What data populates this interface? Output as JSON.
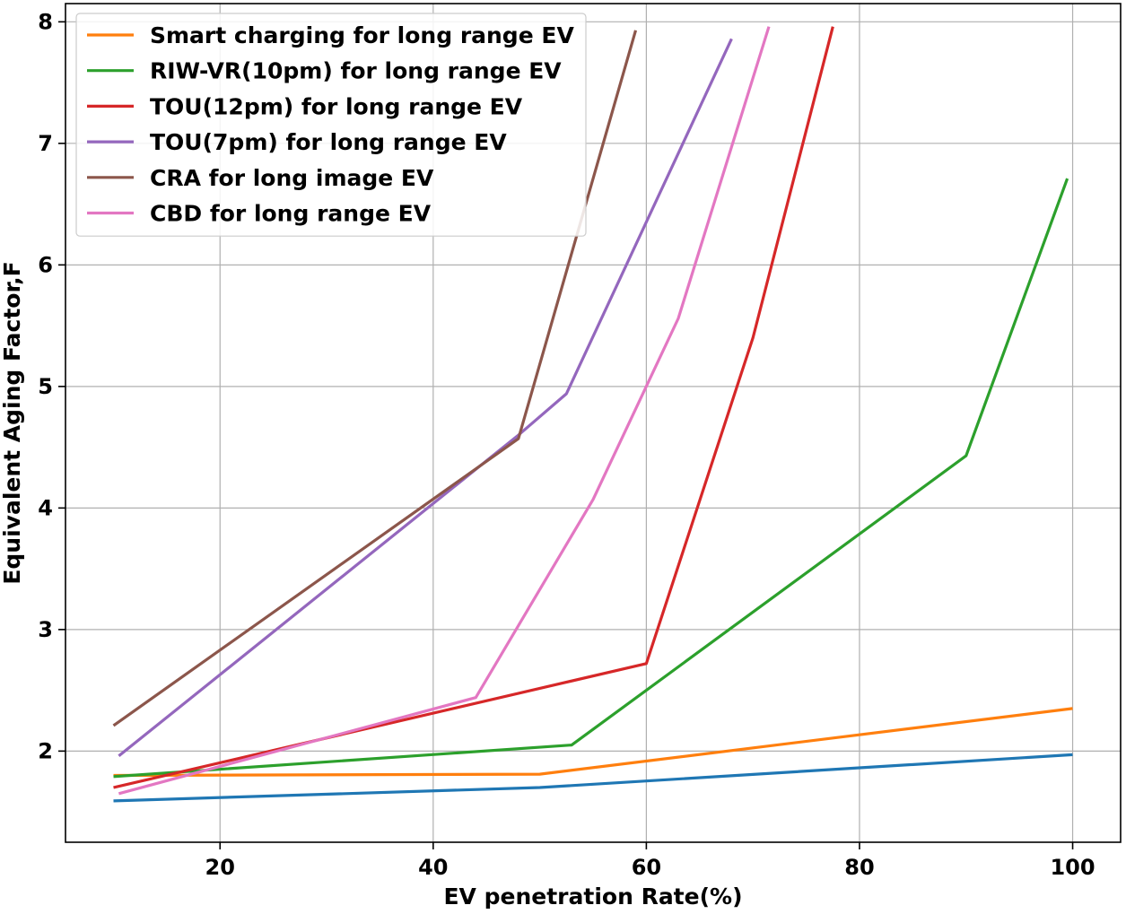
{
  "chart_data": {
    "type": "line",
    "title": "",
    "xlabel": "EV penetration Rate(%)",
    "ylabel": "Equivalent Aging Factor,F",
    "xlim": [
      5.5,
      104.5
    ],
    "ylim": [
      1.25,
      8.15
    ],
    "xticks": [
      20,
      40,
      60,
      80,
      100
    ],
    "yticks": [
      2,
      3,
      4,
      5,
      6,
      7,
      8
    ],
    "grid": true,
    "legend_position": "top-left",
    "series": [
      {
        "name": "",
        "color": "#1f77b4",
        "in_legend": false,
        "points": [
          [
            10,
            1.59
          ],
          [
            50,
            1.7
          ],
          [
            100,
            1.97
          ]
        ]
      },
      {
        "name": "Smart charging for long range EV",
        "color": "#ff7f0e",
        "in_legend": true,
        "points": [
          [
            10,
            1.8
          ],
          [
            50,
            1.81
          ],
          [
            100,
            2.35
          ]
        ]
      },
      {
        "name": "RIW-VR(10pm) for long range EV",
        "color": "#2ca02c",
        "in_legend": true,
        "points": [
          [
            10,
            1.79
          ],
          [
            53,
            2.05
          ],
          [
            90,
            4.43
          ],
          [
            99.5,
            6.71
          ]
        ]
      },
      {
        "name": "TOU(12pm) for long range EV",
        "color": "#d62728",
        "in_legend": true,
        "points": [
          [
            10,
            1.7
          ],
          [
            60,
            2.72
          ],
          [
            70,
            5.4
          ],
          [
            77.5,
            7.96
          ]
        ]
      },
      {
        "name": "TOU(7pm) for long range EV",
        "color": "#9467bd",
        "in_legend": true,
        "points": [
          [
            10.5,
            1.96
          ],
          [
            48,
            4.6
          ],
          [
            52.5,
            4.94
          ],
          [
            68,
            7.86
          ]
        ]
      },
      {
        "name": "CRA for long image EV",
        "color": "#8c564b",
        "in_legend": true,
        "points": [
          [
            10,
            2.21
          ],
          [
            48,
            4.57
          ],
          [
            59,
            7.93
          ]
        ]
      },
      {
        "name": "CBD for long range EV",
        "color": "#e377c2",
        "in_legend": true,
        "points": [
          [
            10.5,
            1.65
          ],
          [
            44,
            2.44
          ],
          [
            55,
            4.07
          ],
          [
            63,
            5.56
          ],
          [
            71.5,
            7.96
          ]
        ]
      }
    ]
  }
}
